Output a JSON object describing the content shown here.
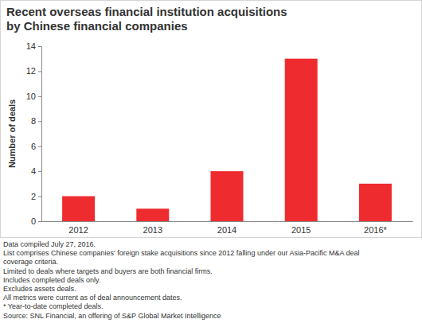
{
  "chart_data": {
    "type": "bar",
    "title": "Recent overseas financial institution acquisitions by Chinese financial companies",
    "y_label": "Number of deals",
    "categories": [
      "2012",
      "2013",
      "2014",
      "2015",
      "2016*"
    ],
    "values": [
      2,
      1,
      4,
      13,
      3
    ],
    "color": "#ee2c2f",
    "ylim": [
      0,
      14
    ],
    "yticks": [
      0,
      2,
      4,
      6,
      8,
      10,
      12,
      14
    ],
    "grid": false,
    "notes": [
      "Data compiled July 27, 2016.",
      "List comprises Chinese companies' foreign stake acquisitions since 2012 falling under our Asia-Pacific M&A deal",
      "coverage criteria.",
      "Limited to deals where targets and buyers are both financial firms.",
      "Includes completed deals only.",
      "Excludes assets deals.",
      "All metrics were current as of deal announcement dates.",
      "* Year-to-date completed deals."
    ],
    "source": "Source: SNL Financial, an offering of S&P Global Market Intelligence"
  }
}
